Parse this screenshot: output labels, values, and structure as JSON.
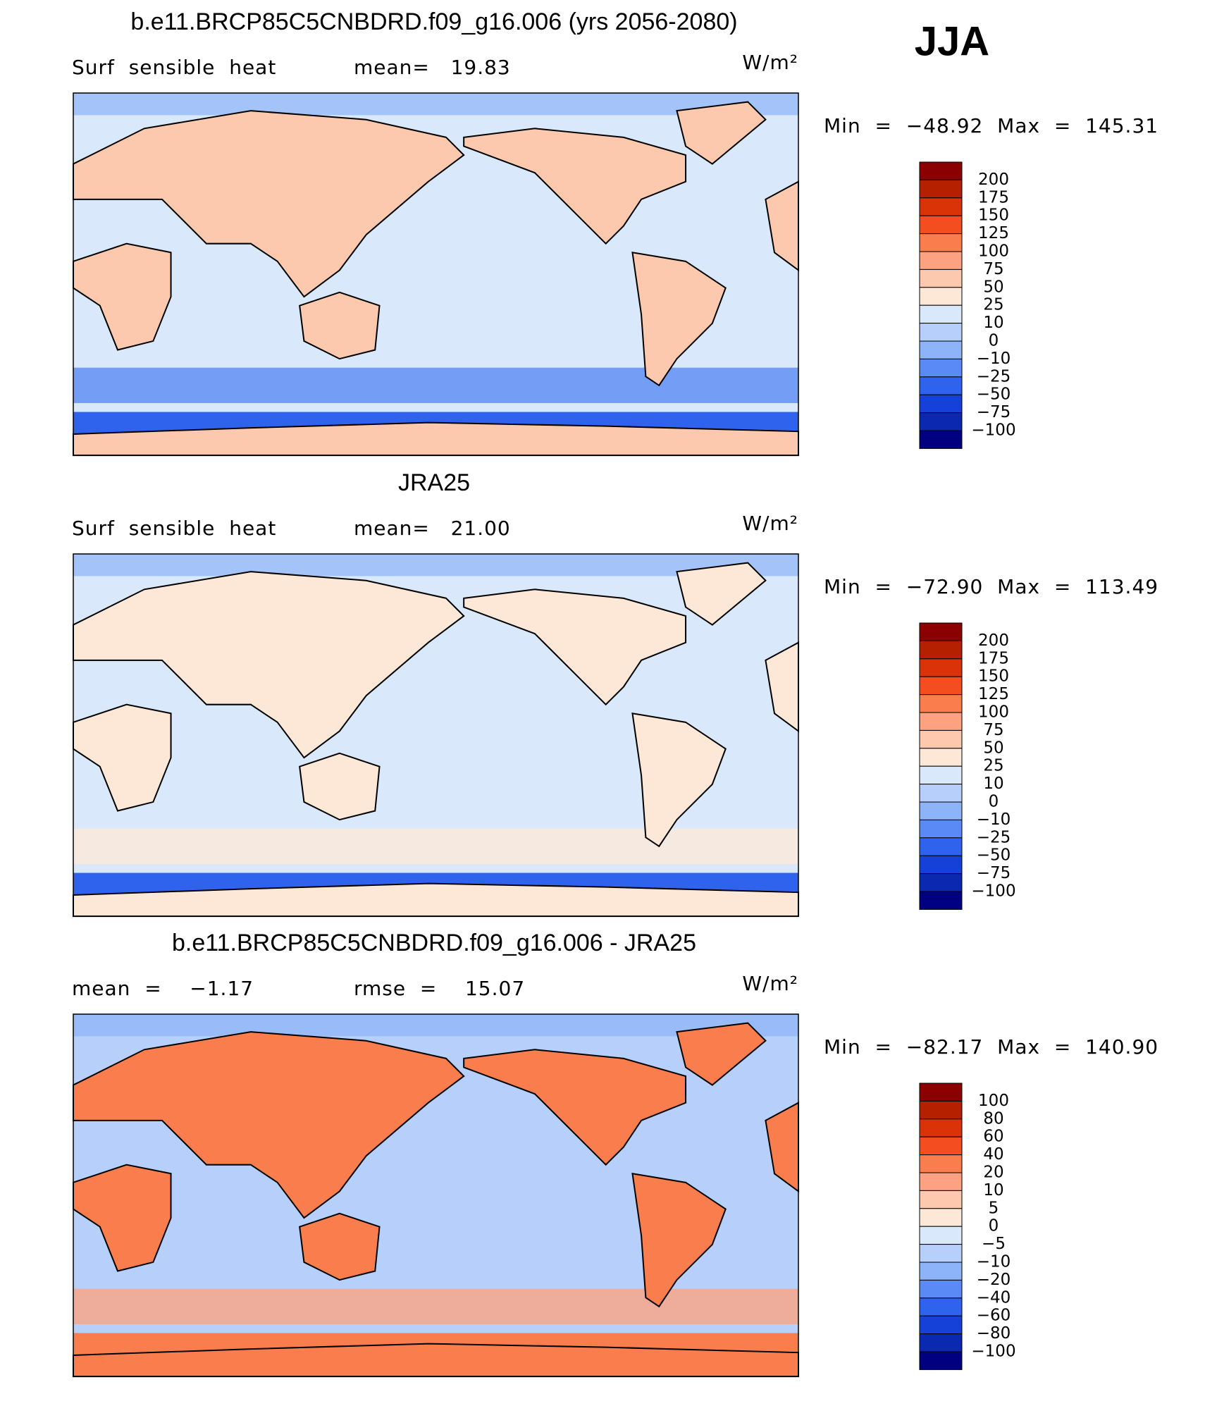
{
  "header": {
    "season": "JJA"
  },
  "colorbar_colors": [
    "#8b0000",
    "#b52000",
    "#db3308",
    "#f44d20",
    "#fa7d4e",
    "#fca282",
    "#fdc9ae",
    "#fde8d8",
    "#d9e9fb",
    "#b6d0fb",
    "#8db3f8",
    "#5a8bf5",
    "#2f63ee",
    "#1541d8",
    "#0a28b0",
    "#000080"
  ],
  "panels": [
    {
      "title": "b.e11.BRCP85C5CNBDRD.f09_g16.006 (yrs 2056-2080)",
      "left_label": "Surf  sensible  heat",
      "right_label": "mean=   19.83",
      "units": "W/m²",
      "minmax": "Min  =  −48.92  Max  =  145.31",
      "colorbar_labels": [
        "200",
        "175",
        "150",
        "125",
        "100",
        "75",
        "50",
        "25",
        "10",
        "0",
        "−10",
        "−25",
        "−50",
        "−75",
        "−100"
      ]
    },
    {
      "title": "JRA25",
      "left_label": "Surf  sensible  heat",
      "right_label": "mean=   21.00",
      "units": "W/m²",
      "minmax": "Min  =  −72.90  Max  =  113.49",
      "colorbar_labels": [
        "200",
        "175",
        "150",
        "125",
        "100",
        "75",
        "50",
        "25",
        "10",
        "0",
        "−10",
        "−25",
        "−50",
        "−75",
        "−100"
      ]
    },
    {
      "title": "b.e11.BRCP85C5CNBDRD.f09_g16.006 - JRA25",
      "left_label": "mean  =    −1.17",
      "right_label": "rmse  =    15.07",
      "units": "W/m²",
      "minmax": "Min  =  −82.17  Max  =  140.90",
      "colorbar_labels": [
        "100",
        "80",
        "60",
        "40",
        "20",
        "10",
        "5",
        "0",
        "−5",
        "−10",
        "−20",
        "−40",
        "−60",
        "−80",
        "−100"
      ]
    }
  ]
}
